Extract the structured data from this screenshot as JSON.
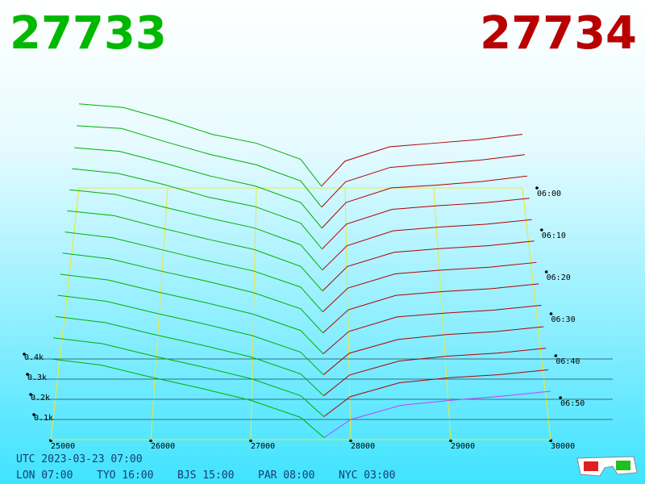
{
  "header": {
    "bid_price": "27733",
    "ask_price": "27734"
  },
  "chart_data": {
    "type": "depth3d",
    "bid_color": "#00b000",
    "ask_color": "#b00000",
    "front_ask_color": "#c040ff",
    "bid_prices": [
      25000,
      25500,
      26000,
      26500,
      27000,
      27500,
      27733
    ],
    "ask_prices": [
      27734,
      28000,
      28500,
      29000,
      29500,
      30000
    ],
    "xlim": [
      25000,
      30000
    ],
    "xticks": [
      25000,
      26000,
      27000,
      28000,
      29000,
      30000
    ],
    "zlim": [
      0,
      60
    ],
    "zticks": [
      {
        "value": 0,
        "label": "06:00"
      },
      {
        "value": 10,
        "label": "06:10"
      },
      {
        "value": 20,
        "label": "06:20"
      },
      {
        "value": 30,
        "label": "06:30"
      },
      {
        "value": 40,
        "label": "06:40"
      },
      {
        "value": 50,
        "label": "06:50"
      }
    ],
    "yticks": [
      {
        "value": 100,
        "label": "0.1k"
      },
      {
        "value": 200,
        "label": "0.2k"
      },
      {
        "value": 300,
        "label": "0.3k"
      },
      {
        "value": 400,
        "label": "0.4k"
      }
    ],
    "snapshots": [
      {
        "minute": 0,
        "bids": [
          470,
          450,
          380,
          300,
          250,
          160,
          10
        ],
        "asks": [
          10,
          150,
          230,
          250,
          270,
          300
        ]
      },
      {
        "minute": 5,
        "bids": [
          460,
          445,
          370,
          300,
          245,
          155,
          10
        ],
        "asks": [
          10,
          150,
          230,
          250,
          270,
          300
        ]
      },
      {
        "minute": 10,
        "bids": [
          450,
          430,
          365,
          295,
          240,
          150,
          10
        ],
        "asks": [
          10,
          150,
          230,
          245,
          265,
          295
        ]
      },
      {
        "minute": 15,
        "bids": [
          445,
          420,
          360,
          290,
          240,
          150,
          10
        ],
        "asks": [
          10,
          145,
          225,
          245,
          260,
          285
        ]
      },
      {
        "minute": 20,
        "bids": [
          440,
          415,
          350,
          290,
          235,
          145,
          10
        ],
        "asks": [
          10,
          140,
          220,
          240,
          255,
          280
        ]
      },
      {
        "minute": 25,
        "bids": [
          435,
          410,
          345,
          285,
          230,
          140,
          10
        ],
        "asks": [
          10,
          140,
          215,
          235,
          250,
          275
        ]
      },
      {
        "minute": 30,
        "bids": [
          430,
          400,
          340,
          280,
          225,
          140,
          10
        ],
        "asks": [
          10,
          135,
          210,
          230,
          245,
          270
        ]
      },
      {
        "minute": 35,
        "bids": [
          425,
          395,
          335,
          280,
          220,
          135,
          10
        ],
        "asks": [
          10,
          130,
          205,
          225,
          240,
          265
        ]
      },
      {
        "minute": 40,
        "bids": [
          420,
          390,
          330,
          275,
          215,
          130,
          10
        ],
        "asks": [
          10,
          125,
          200,
          220,
          235,
          260
        ]
      },
      {
        "minute": 45,
        "bids": [
          415,
          385,
          325,
          270,
          210,
          125,
          10
        ],
        "asks": [
          10,
          120,
          190,
          215,
          230,
          255
        ]
      },
      {
        "minute": 50,
        "bids": [
          410,
          380,
          320,
          265,
          205,
          120,
          10
        ],
        "asks": [
          10,
          115,
          185,
          210,
          225,
          250
        ]
      },
      {
        "minute": 55,
        "bids": [
          405,
          375,
          315,
          260,
          200,
          115,
          10
        ],
        "asks": [
          10,
          110,
          180,
          205,
          220,
          245
        ]
      },
      {
        "minute": 60,
        "bids": [
          400,
          370,
          310,
          255,
          195,
          110,
          10
        ],
        "asks": [
          10,
          100,
          170,
          195,
          215,
          240
        ]
      }
    ]
  },
  "footer": {
    "utc": "UTC 2023-03-23 07:00",
    "clocks": [
      "LON 07:00",
      "TYO 16:00",
      "BJS 15:00",
      "PAR 08:00",
      "NYC 03:00"
    ]
  }
}
